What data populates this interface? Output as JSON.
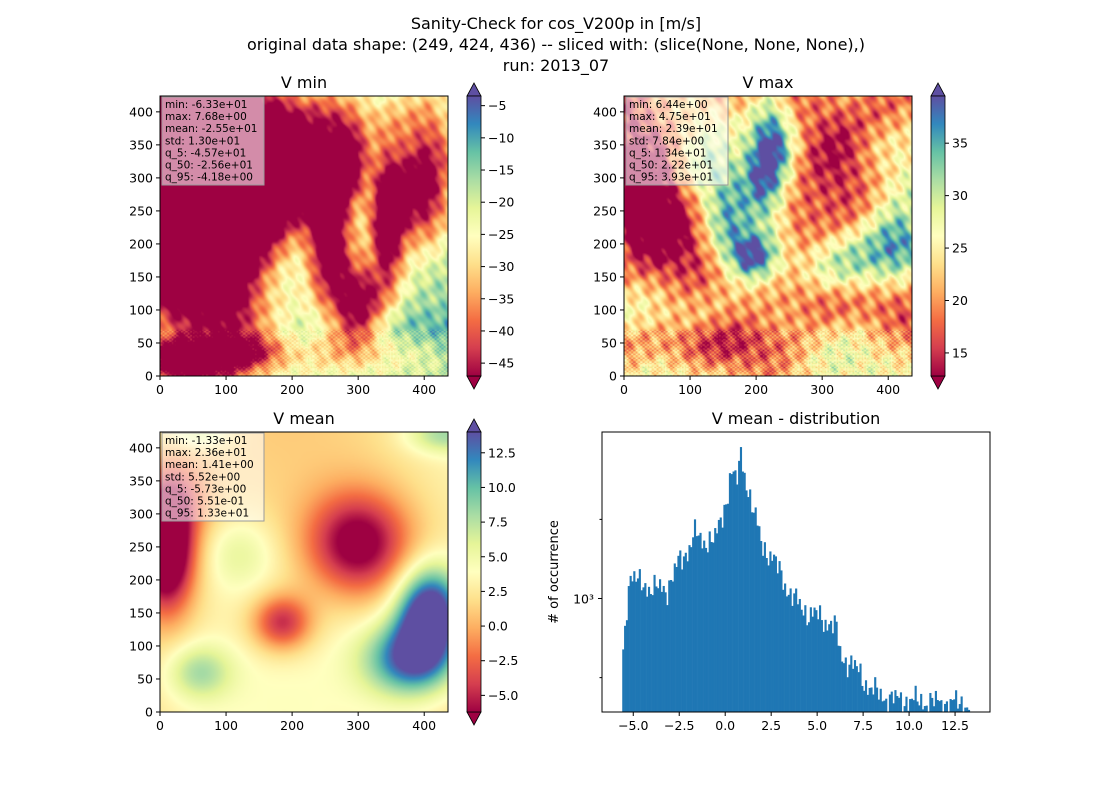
{
  "figure": {
    "title_lines": [
      "Sanity-Check for cos_V200p in [m/s]",
      "original data shape: (249, 424, 436) -- sliced with: (slice(None, None, None),)",
      "run: 2013_07"
    ]
  },
  "colormap": {
    "name": "Spectral",
    "stops": [
      "#9e0142",
      "#d53e4f",
      "#f46d43",
      "#fdae61",
      "#fee08b",
      "#ffffbf",
      "#e6f598",
      "#abdda4",
      "#66c2a5",
      "#3288bd",
      "#5e4fa2"
    ]
  },
  "chart_data": [
    {
      "type": "heatmap",
      "name": "vmin",
      "title": "V min",
      "xlim": [
        0,
        436
      ],
      "ylim": [
        0,
        424
      ],
      "xticks": [
        0,
        100,
        200,
        300,
        400
      ],
      "yticks": [
        0,
        50,
        100,
        150,
        200,
        250,
        300,
        350,
        400
      ],
      "colorbar": {
        "vmin": -47,
        "vmax": -3.5,
        "extend": "both",
        "ticks": [
          -45,
          -40,
          -35,
          -30,
          -25,
          -20,
          -15,
          -10,
          -5
        ]
      },
      "stats": [
        "min: -6.33e+01",
        "max: 7.68e+00",
        "mean: -2.55e+01",
        "std: 1.30e+01",
        "q_5: -4.57e+01",
        "q_50: -2.56e+01",
        "q_95: -4.18e+00"
      ],
      "features": [
        {
          "x": 15,
          "y": 215,
          "sx": 38,
          "sy": 65,
          "v": -62
        },
        {
          "x": 40,
          "y": 330,
          "sx": 45,
          "sy": 70,
          "v": -40
        },
        {
          "x": 110,
          "y": 240,
          "sx": 35,
          "sy": 110,
          "v": -34
        },
        {
          "x": 165,
          "y": 300,
          "sx": 30,
          "sy": 70,
          "v": -32
        },
        {
          "x": 210,
          "y": 310,
          "sx": 35,
          "sy": 45,
          "v": -30
        },
        {
          "x": 255,
          "y": 220,
          "sx": 22,
          "sy": 80,
          "v": -36
        },
        {
          "x": 300,
          "y": 110,
          "sx": 25,
          "sy": 45,
          "v": -34
        },
        {
          "x": 285,
          "y": 325,
          "sx": 20,
          "sy": 40,
          "v": -28
        },
        {
          "x": 345,
          "y": 230,
          "sx": 18,
          "sy": 75,
          "v": -34
        },
        {
          "x": 395,
          "y": 270,
          "sx": 30,
          "sy": 55,
          "v": -26
        },
        {
          "x": 410,
          "y": 370,
          "sx": 35,
          "sy": 60,
          "v": -16
        },
        {
          "x": 230,
          "y": 395,
          "sx": 90,
          "sy": 35,
          "v": -16
        },
        {
          "x": 100,
          "y": 75,
          "sx": 90,
          "sy": 28,
          "v": -14
        },
        {
          "x": 40,
          "y": 25,
          "sx": 40,
          "sy": 20,
          "v": -30
        },
        {
          "x": 140,
          "y": 35,
          "sx": 45,
          "sy": 20,
          "v": -18
        },
        {
          "x": 290,
          "y": 45,
          "sx": 55,
          "sy": 30,
          "v": -12
        },
        {
          "x": 395,
          "y": 60,
          "sx": 45,
          "sy": 45,
          "v": -5
        },
        {
          "x": 425,
          "y": 20,
          "sx": 30,
          "sy": 30,
          "v": -3
        }
      ]
    },
    {
      "type": "heatmap",
      "name": "vmax",
      "title": "V max",
      "xlim": [
        0,
        436
      ],
      "ylim": [
        0,
        424
      ],
      "xticks": [
        0,
        100,
        200,
        300,
        400
      ],
      "yticks": [
        0,
        50,
        100,
        150,
        200,
        250,
        300,
        350,
        400
      ],
      "colorbar": {
        "vmin": 12.8,
        "vmax": 39.5,
        "extend": "both",
        "ticks": [
          15,
          20,
          25,
          30,
          35
        ]
      },
      "stats": [
        "min: 6.44e+00",
        "max: 4.75e+01",
        "mean: 2.39e+01",
        "std: 7.84e+00",
        "q_5: 1.34e+01",
        "q_50: 2.22e+01",
        "q_95: 3.93e+01"
      ],
      "features": [
        {
          "x": 30,
          "y": 320,
          "sx": 45,
          "sy": 70,
          "v": -11
        },
        {
          "x": 60,
          "y": 230,
          "sx": 60,
          "sy": 50,
          "v": -9
        },
        {
          "x": 110,
          "y": 300,
          "sx": 35,
          "sy": 60,
          "v": 4
        },
        {
          "x": 150,
          "y": 255,
          "sx": 30,
          "sy": 50,
          "v": 7
        },
        {
          "x": 215,
          "y": 330,
          "sx": 22,
          "sy": 70,
          "v": 15
        },
        {
          "x": 235,
          "y": 360,
          "sx": 20,
          "sy": 40,
          "v": 8
        },
        {
          "x": 160,
          "y": 205,
          "sx": 25,
          "sy": 35,
          "v": 8
        },
        {
          "x": 195,
          "y": 180,
          "sx": 25,
          "sy": 25,
          "v": 15
        },
        {
          "x": 260,
          "y": 230,
          "sx": 30,
          "sy": 40,
          "v": -5
        },
        {
          "x": 330,
          "y": 340,
          "sx": 40,
          "sy": 60,
          "v": -9
        },
        {
          "x": 400,
          "y": 400,
          "sx": 30,
          "sy": 30,
          "v": -5
        },
        {
          "x": 350,
          "y": 170,
          "sx": 50,
          "sy": 35,
          "v": 13
        },
        {
          "x": 415,
          "y": 200,
          "sx": 35,
          "sy": 40,
          "v": 14
        },
        {
          "x": 290,
          "y": 110,
          "sx": 45,
          "sy": 30,
          "v": -7
        },
        {
          "x": 390,
          "y": 110,
          "sx": 45,
          "sy": 40,
          "v": -3
        },
        {
          "x": 120,
          "y": 110,
          "sx": 90,
          "sy": 30,
          "v": 3
        },
        {
          "x": 120,
          "y": 45,
          "sx": 110,
          "sy": 25,
          "v": -7
        },
        {
          "x": 340,
          "y": 40,
          "sx": 70,
          "sy": 28,
          "v": 2
        }
      ]
    },
    {
      "type": "heatmap",
      "name": "vmean",
      "title": "V mean",
      "xlim": [
        0,
        436
      ],
      "ylim": [
        0,
        424
      ],
      "xticks": [
        0,
        100,
        200,
        300,
        400
      ],
      "yticks": [
        0,
        50,
        100,
        150,
        200,
        250,
        300,
        350,
        400
      ],
      "colorbar": {
        "vmin": -6.2,
        "vmax": 14.0,
        "extend": "both",
        "ticks": [
          -5.0,
          -2.5,
          0.0,
          2.5,
          5.0,
          7.5,
          10.0,
          12.5
        ]
      },
      "stats": [
        "min: -1.33e+01",
        "max: 2.36e+01",
        "mean: 1.41e+00",
        "std: 5.52e+00",
        "q_5: -5.73e+00",
        "q_50: 5.51e-01",
        "q_95: 1.33e+01"
      ],
      "features": [
        {
          "x": 10,
          "y": 245,
          "sx": 30,
          "sy": 65,
          "v": -14
        },
        {
          "x": 25,
          "y": 330,
          "sx": 40,
          "sy": 45,
          "v": -4
        },
        {
          "x": 185,
          "y": 135,
          "sx": 32,
          "sy": 30,
          "v": -8
        },
        {
          "x": 120,
          "y": 240,
          "sx": 40,
          "sy": 40,
          "v": 3
        },
        {
          "x": 300,
          "y": 255,
          "sx": 55,
          "sy": 55,
          "v": -10
        },
        {
          "x": 410,
          "y": 160,
          "sx": 35,
          "sy": 45,
          "v": 12
        },
        {
          "x": 380,
          "y": 80,
          "sx": 50,
          "sy": 40,
          "v": 11
        },
        {
          "x": 400,
          "y": 120,
          "sx": 30,
          "sy": 40,
          "v": 4
        },
        {
          "x": 60,
          "y": 60,
          "sx": 35,
          "sy": 30,
          "v": 5
        },
        {
          "x": 430,
          "y": 420,
          "sx": 40,
          "sy": 20,
          "v": 5
        },
        {
          "x": 60,
          "y": 420,
          "sx": 30,
          "sy": 15,
          "v": 4
        }
      ]
    },
    {
      "type": "bar",
      "name": "hist",
      "title": "V mean - distribution",
      "ylabel": "# of occurrence",
      "yscale": "log",
      "xlim": [
        -6.7,
        14.4
      ],
      "ylim": [
        370,
        4300
      ],
      "xticks": [
        -5.0,
        -2.5,
        0.0,
        2.5,
        5.0,
        7.5,
        10.0,
        12.5
      ],
      "xtick_labels": [
        "−5.0",
        "−2.5",
        "0.0",
        "2.5",
        "5.0",
        "7.5",
        "10.0",
        "12.5"
      ],
      "ymajor_label": "10³",
      "yminor_ticks": [
        500,
        2000
      ],
      "bins": {
        "start": -5.6,
        "width": 0.1
      },
      "anchors": [
        [
          -5.6,
          560
        ],
        [
          -5.4,
          850
        ],
        [
          -5.3,
          1100
        ],
        [
          -5.1,
          1250
        ],
        [
          -4.8,
          1150
        ],
        [
          -4.0,
          1100
        ],
        [
          -3.2,
          1080
        ],
        [
          -2.8,
          1250
        ],
        [
          -2.5,
          1380
        ],
        [
          -2.2,
          1450
        ],
        [
          -1.8,
          1700
        ],
        [
          -1.6,
          1800
        ],
        [
          -1.3,
          1600
        ],
        [
          -0.9,
          1700
        ],
        [
          -0.5,
          1700
        ],
        [
          -0.2,
          2000
        ],
        [
          0.1,
          2400
        ],
        [
          0.3,
          3200
        ],
        [
          0.6,
          2700
        ],
        [
          0.85,
          3500
        ],
        [
          1.1,
          2900
        ],
        [
          1.5,
          2200
        ],
        [
          2.0,
          1600
        ],
        [
          2.5,
          1450
        ],
        [
          3.0,
          1250
        ],
        [
          3.5,
          1050
        ],
        [
          4.0,
          950
        ],
        [
          4.5,
          880
        ],
        [
          5.0,
          860
        ],
        [
          5.5,
          820
        ],
        [
          6.0,
          780
        ],
        [
          6.3,
          600
        ],
        [
          6.8,
          570
        ],
        [
          7.3,
          520
        ],
        [
          7.8,
          460
        ],
        [
          8.4,
          430
        ],
        [
          9.0,
          415
        ],
        [
          10.0,
          410
        ],
        [
          11.0,
          405
        ],
        [
          12.0,
          400
        ],
        [
          13.3,
          400
        ]
      ]
    }
  ]
}
